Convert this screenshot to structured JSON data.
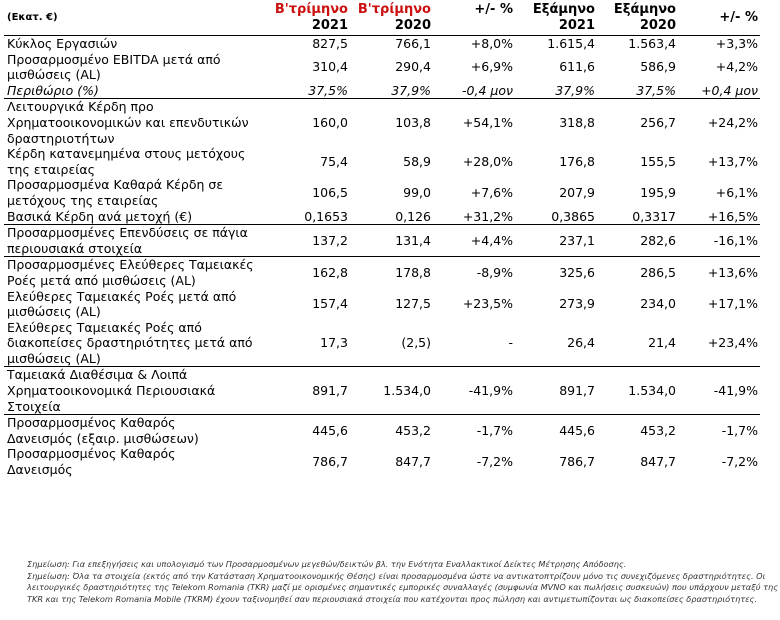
{
  "header": {
    "unit": "(Εκατ. €)",
    "cols": [
      {
        "top": "Β'τρίμηνο",
        "bottom": "2021"
      },
      {
        "top": "Β'τρίμηνο",
        "bottom": "2020"
      },
      {
        "top": "+/- %",
        "bottom": ""
      },
      {
        "top": "Εξάμηνο",
        "bottom": "2021"
      },
      {
        "top": "Εξάμηνο",
        "bottom": "2020"
      },
      {
        "top": "+/- %",
        "bottom": ""
      }
    ]
  },
  "rows": [
    {
      "label": "Κύκλος Εργασιών",
      "values": [
        "827,5",
        "766,1",
        "+8,0%",
        "1.615,4",
        "1.563,4",
        "+3,3%"
      ]
    },
    {
      "label": "Προσαρμοσμένο EBITDA μετά από μισθώσεις (AL)",
      "values": [
        "310,4",
        "290,4",
        "+6,9%",
        "611,6",
        "586,9",
        "+4,2%"
      ]
    },
    {
      "label": "Περιθώριο (%)",
      "values": [
        "37,5%",
        "37,9%",
        "-0,4 μον",
        "37,9%",
        "37,5%",
        "+0,4 μον"
      ]
    },
    {
      "label": "Λειτουργικά Κέρδη προ Χρηματοοικονομικών και επενδυτικών δραστηριοτήτων",
      "values": [
        "160,0",
        "103,8",
        "+54,1%",
        "318,8",
        "256,7",
        "+24,2%"
      ]
    },
    {
      "label": "Κέρδη κατανεμημένα στους μετόχους της εταιρείας",
      "values": [
        "75,4",
        "58,9",
        "+28,0%",
        "176,8",
        "155,5",
        "+13,7%"
      ]
    },
    {
      "label": "Προσαρμοσμένα Καθαρά Κέρδη σε μετόχους της εταιρείας",
      "values": [
        "106,5",
        "99,0",
        "+7,6%",
        "207,9",
        "195,9",
        "+6,1%"
      ]
    },
    {
      "label": "Βασικά Κέρδη ανά μετοχή (€)",
      "values": [
        "0,1653",
        "0,126",
        "+31,2%",
        "0,3865",
        "0,3317",
        "+16,5%"
      ]
    },
    {
      "label": "Προσαρμοσμένες Επενδύσεις σε πάγια περιουσιακά στοιχεία",
      "values": [
        "137,2",
        "131,4",
        "+4,4%",
        "237,1",
        "282,6",
        "-16,1%"
      ]
    },
    {
      "label": "Προσαρμοσμένες Ελεύθερες Ταμειακές Ροές μετά από μισθώσεις (AL)",
      "values": [
        "162,8",
        "178,8",
        "-8,9%",
        "325,6",
        "286,5",
        "+13,6%"
      ]
    },
    {
      "label": "Ελεύθερες Ταμειακές Ροές μετά από μισθώσεις (AL)",
      "values": [
        "157,4",
        "127,5",
        "+23,5%",
        "273,9",
        "234,0",
        "+17,1%"
      ]
    },
    {
      "label": "Ελεύθερες Ταμειακές Ροές από διακοπείσες δραστηριότητες μετά από μισθώσεις (AL)",
      "values": [
        "17,3",
        "(2,5)",
        "-",
        "26,4",
        "21,4",
        "+23,4%"
      ]
    },
    {
      "label": "Ταμειακά Διαθέσιμα & Λοιπά Χρηματοοικονομικά Περιουσιακά Στοιχεία",
      "values": [
        "891,7",
        "1.534,0",
        "-41,9%",
        "891,7",
        "1.534,0",
        "-41,9%"
      ]
    },
    {
      "label": "Προσαρμοσμένος Καθαρός Δανεισμός (εξαιρ. μισθώσεων)",
      "values": [
        "445,6",
        "453,2",
        "-1,7%",
        "445,6",
        "453,2",
        "-1,7%"
      ]
    },
    {
      "label": "Προσαρμοσμένος Καθαρός Δανεισμός",
      "values": [
        "786,7",
        "847,7",
        "-7,2%",
        "786,7",
        "847,7",
        "-7,2%"
      ]
    }
  ],
  "notes": [
    "Σημείωση: Για επεξηγήσεις και υπολογισμό των Προσαρμοσμένων μεγεθών/δεικτών βλ. την Ενότητα Εναλλακτικοί Δείκτες Μέτρησης Απόδοσης.",
    "Σημείωση: Όλα τα στοιχεία (εκτός από την Κατάσταση Χρηματοοικονομικής Θέσης) είναι προσαρμοσμένα ώστε να αντικατοπτρίζουν μόνο τις συνεχιζόμενες δραστηριότητες. Οι λειτουργικές δραστηριότητες της Telekom Romania (TKR) μαζί με ορισμένες σημαντικές εμπορικές συναλλαγές (συμφωνία MVNO και πωλήσεις συσκευών) που υπάρχουν μεταξύ της TKR και της Telekom Romania Mobile (TKRM) έχουν ταξινομηθεί σαν περιουσιακά στοιχεία που κατέχονται προς πώληση και αντιμετωπίζονται ως διακοπείσες δραστηριότητες."
  ]
}
